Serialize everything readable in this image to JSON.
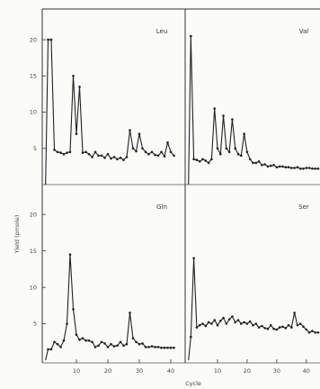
{
  "chart_data": {
    "type": "line",
    "xlabel": "Cycle",
    "ylabel": "Yield (pmole)",
    "xlim": [
      0,
      44
    ],
    "ylim": [
      0,
      22
    ],
    "yticks": [
      5,
      10,
      15,
      20
    ],
    "xticks": [
      10,
      20,
      30,
      40
    ],
    "xtick_labels": [
      "10",
      "20",
      "30",
      "40"
    ],
    "yticks_top": [
      5,
      10,
      15,
      20
    ],
    "yticks_bottom": [
      5,
      10,
      15,
      20
    ],
    "panels": [
      {
        "label": "Leu",
        "x": [
          1,
          2,
          3,
          4,
          5,
          6,
          7,
          8,
          9,
          10,
          11,
          12,
          13,
          14,
          15,
          16,
          17,
          18,
          19,
          20,
          21,
          22,
          23,
          24,
          25,
          26,
          27,
          28,
          29,
          30,
          31,
          32,
          33,
          34,
          35,
          36,
          37,
          38,
          39,
          40,
          41
        ],
        "values": [
          20,
          20,
          4.8,
          4.5,
          4.4,
          4.2,
          4.4,
          4.5,
          15,
          7,
          13.5,
          4.4,
          4.5,
          4.2,
          3.8,
          4.5,
          4,
          4,
          3.7,
          4.2,
          3.6,
          3.8,
          3.5,
          3.7,
          3.4,
          3.8,
          7.5,
          5,
          4.6,
          7,
          5,
          4.5,
          4.2,
          4.5,
          4.1,
          4,
          4.5,
          3.9,
          5.8,
          4.5,
          4
        ]
      },
      {
        "label": "Val",
        "x": [
          1,
          2,
          3,
          4,
          5,
          6,
          7,
          8,
          9,
          10,
          11,
          12,
          13,
          14,
          15,
          16,
          17,
          18,
          19,
          20,
          21,
          22,
          23,
          24,
          25,
          26,
          27,
          28,
          29,
          30,
          31,
          32,
          33,
          34,
          35,
          36,
          37,
          38,
          39,
          40,
          41,
          42,
          43,
          44
        ],
        "values": [
          20.5,
          3.5,
          3.4,
          3.2,
          3.5,
          3.3,
          3,
          3.5,
          10.5,
          5,
          4.2,
          9.5,
          5,
          4.5,
          9,
          5,
          4.2,
          4,
          7,
          4.5,
          3.5,
          3,
          3,
          3.2,
          2.7,
          2.8,
          2.5,
          2.6,
          2.7,
          2.4,
          2.5,
          2.5,
          2.4,
          2.4,
          2.3,
          2.3,
          2.4,
          2.2,
          2.2,
          2.3,
          2.3,
          2.2,
          2.2,
          2.2
        ]
      },
      {
        "label": "Gln",
        "x": [
          1,
          2,
          3,
          4,
          5,
          6,
          7,
          8,
          9,
          10,
          11,
          12,
          13,
          14,
          15,
          16,
          17,
          18,
          19,
          20,
          21,
          22,
          23,
          24,
          25,
          26,
          27,
          28,
          29,
          30,
          31,
          32,
          33,
          34,
          35,
          36,
          37,
          38,
          39,
          40,
          41
        ],
        "values": [
          1.5,
          1.5,
          2.5,
          2.2,
          1.8,
          2.7,
          5,
          14.5,
          7,
          3.5,
          2.8,
          3,
          2.7,
          2.7,
          2.5,
          1.8,
          2,
          2.5,
          2.3,
          1.8,
          2.2,
          1.9,
          2,
          2.5,
          2,
          2.2,
          6.5,
          3,
          2.5,
          2.2,
          2.3,
          1.8,
          1.8,
          1.9,
          1.8,
          1.8,
          1.7,
          1.7,
          1.7,
          1.7,
          1.7
        ]
      },
      {
        "label": "Ser",
        "x": [
          1,
          2,
          3,
          4,
          5,
          6,
          7,
          8,
          9,
          10,
          11,
          12,
          13,
          14,
          15,
          16,
          17,
          18,
          19,
          20,
          21,
          22,
          23,
          24,
          25,
          26,
          27,
          28,
          29,
          30,
          31,
          32,
          33,
          34,
          35,
          36,
          37,
          38,
          39,
          40,
          41,
          42,
          43,
          44
        ],
        "values": [
          3.2,
          14,
          4.5,
          4.8,
          5,
          4.7,
          5.2,
          5,
          5.5,
          4.8,
          5.4,
          5.8,
          5,
          5.6,
          6,
          5.2,
          5.5,
          5,
          5.2,
          5,
          5.3,
          4.8,
          5,
          4.5,
          4.7,
          4.4,
          4.3,
          4.8,
          4.3,
          4.2,
          4.5,
          4.6,
          4.4,
          4.8,
          4.5,
          6.5,
          4.8,
          5,
          4.6,
          4.2,
          3.8,
          4,
          3.8,
          3.8
        ]
      }
    ]
  }
}
